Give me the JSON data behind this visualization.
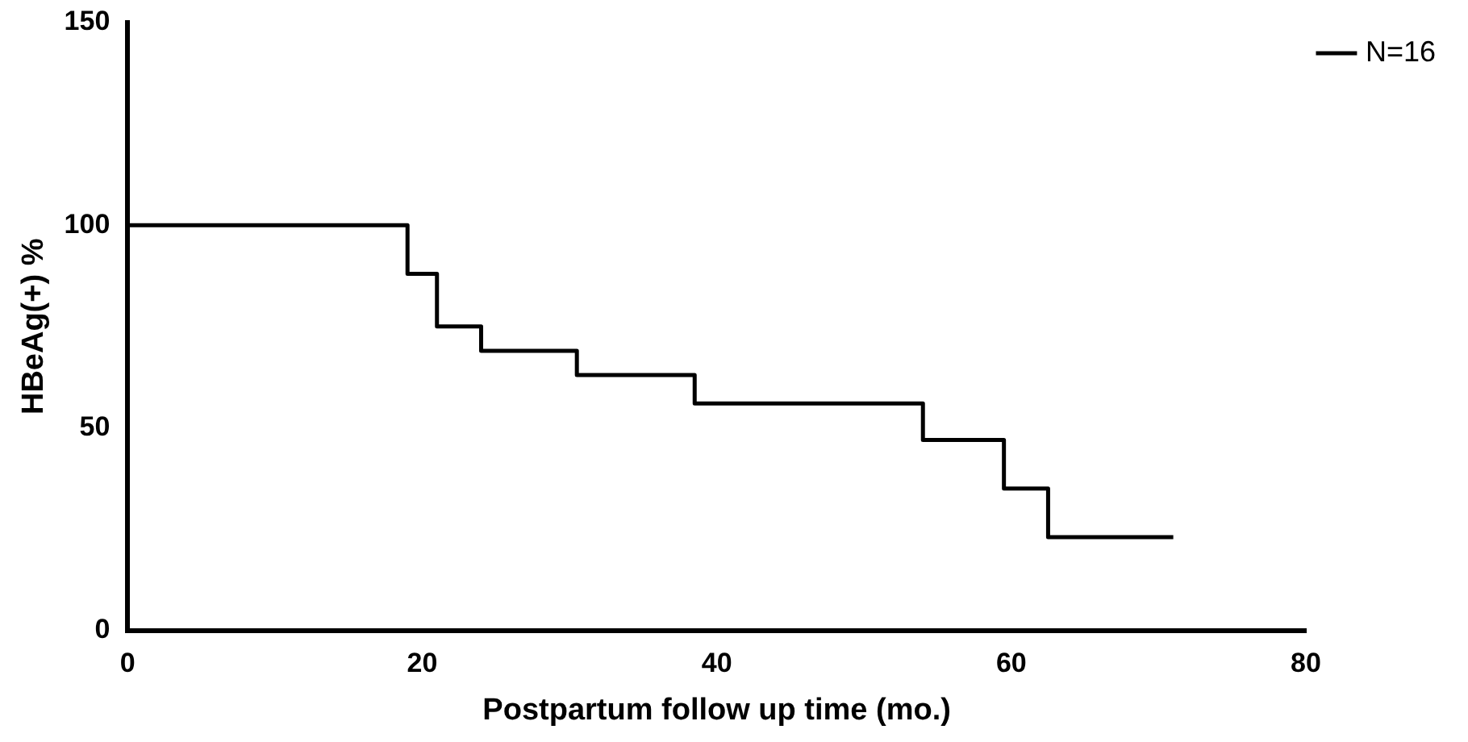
{
  "chart_data": {
    "type": "step",
    "xlabel": "Postpartum follow up time (mo.)",
    "ylabel": "HBeAg(+) %",
    "series": [
      {
        "name": "N=16",
        "color": "#000000",
        "x": [
          0,
          19,
          21,
          24,
          30.5,
          38.5,
          54,
          59.5,
          62.5,
          71
        ],
        "values": [
          100,
          88,
          75,
          69,
          63,
          56,
          47,
          35,
          23,
          23
        ]
      }
    ],
    "xlim": [
      0,
      80
    ],
    "xticks": [
      0,
      20,
      40,
      60,
      80
    ],
    "ylim": [
      0,
      150
    ],
    "yticks": [
      0,
      50,
      100,
      150
    ],
    "grid": false,
    "legend": "top right",
    "marker": "none",
    "line_style": "solid"
  }
}
